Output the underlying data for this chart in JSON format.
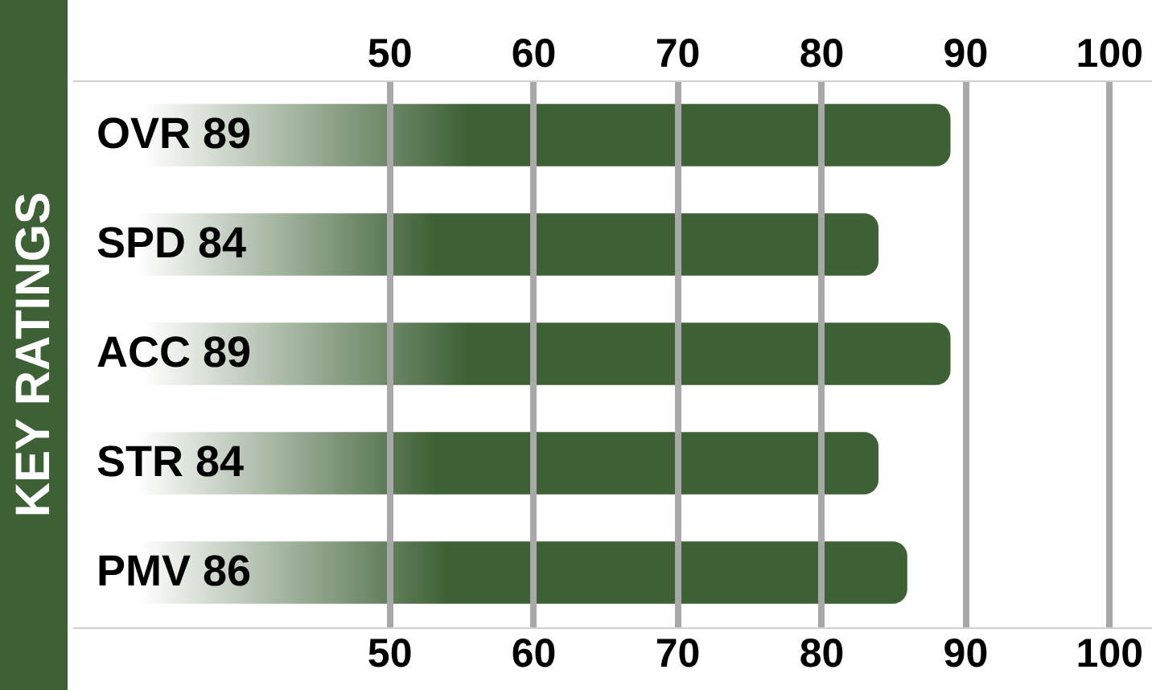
{
  "chart_data": {
    "type": "bar",
    "orientation": "horizontal",
    "ylabel": "KEY RATINGS",
    "categories": [
      "OVR 89",
      "SPD 84",
      "ACC 89",
      "STR 84",
      "PMV 86"
    ],
    "values": [
      89,
      84,
      89,
      84,
      86
    ],
    "color": "#3d6135",
    "xlim": [
      28,
      103
    ],
    "xticks": [
      50,
      60,
      70,
      80,
      90,
      100
    ],
    "x2lim": [
      28,
      103
    ],
    "x2ticks": [
      50,
      60,
      70,
      80,
      90,
      100
    ],
    "grid": "x"
  }
}
